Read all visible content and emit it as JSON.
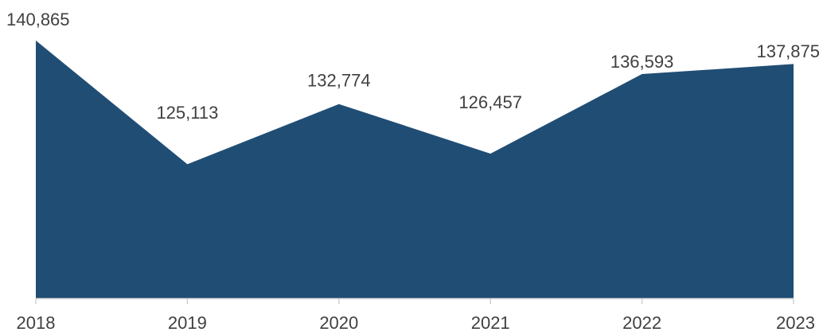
{
  "chart_data": {
    "type": "area",
    "x": [
      "2018",
      "2019",
      "2020",
      "2021",
      "2022",
      "2023"
    ],
    "values": [
      140865,
      125113,
      132774,
      126457,
      136593,
      137875
    ],
    "data_labels": [
      "140,865",
      "125,113",
      "132,774",
      "126,457",
      "136,593",
      "137,875"
    ],
    "title": "",
    "xlabel": "",
    "ylabel": "",
    "ylim": [
      108000,
      144000
    ],
    "grid": false,
    "legend": "none",
    "colors": {
      "area_fill": "#204d74",
      "axis": "#d0d0d0",
      "text": "#404040"
    }
  }
}
